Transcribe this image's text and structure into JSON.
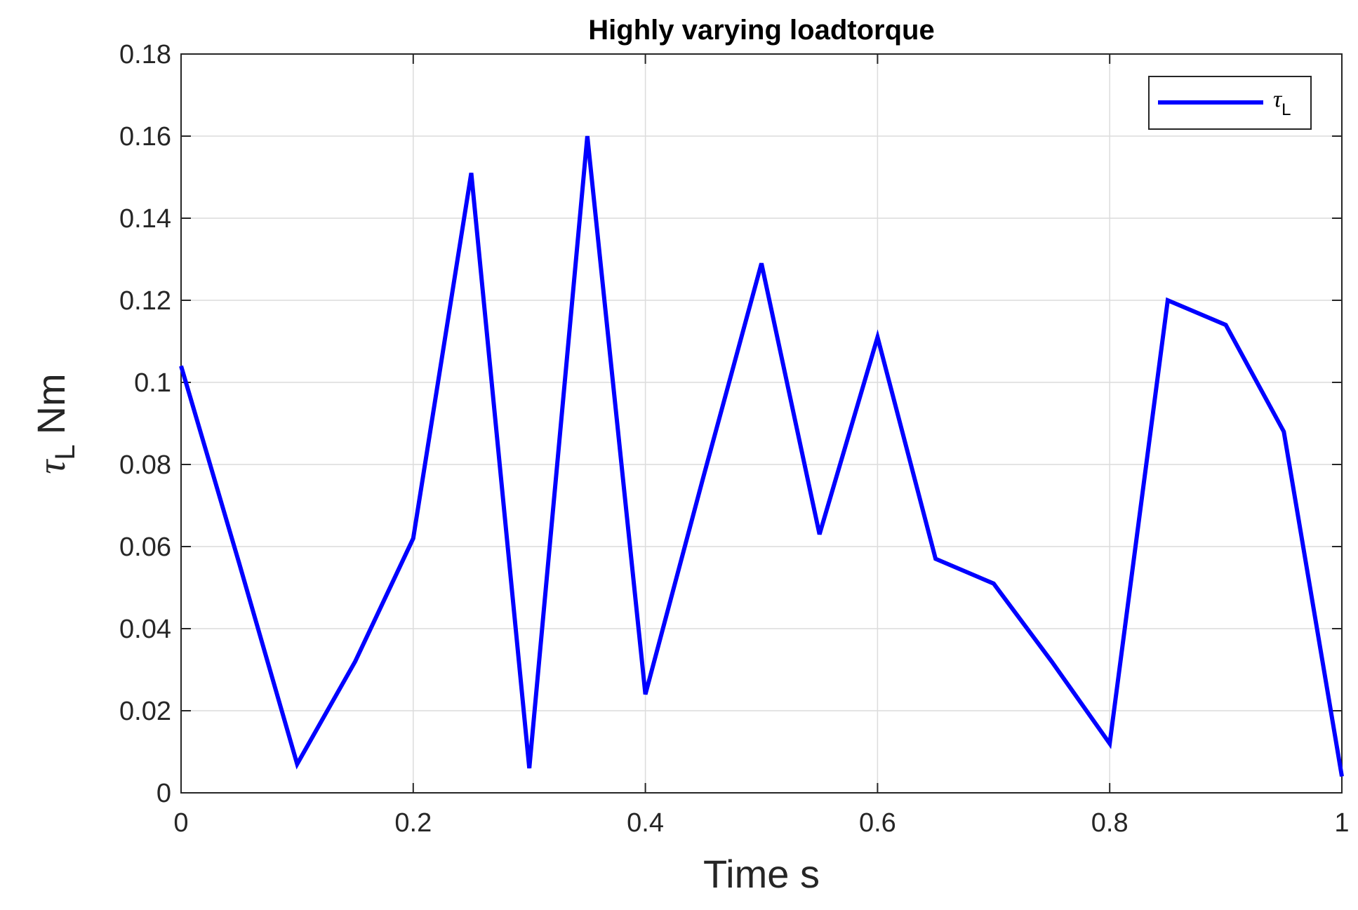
{
  "chart_data": {
    "type": "line",
    "title": "Highly varying loadtorque",
    "xlabel": "Time s",
    "ylabel": {
      "symbol": "τ",
      "subscript": "L",
      "unit": "Nm"
    },
    "xlim": [
      0,
      1
    ],
    "ylim": [
      0,
      0.18
    ],
    "xticks": [
      "0",
      "0.2",
      "0.4",
      "0.6",
      "0.8",
      "1"
    ],
    "xtick_values": [
      0,
      0.2,
      0.4,
      0.6,
      0.8,
      1
    ],
    "yticks": [
      "0",
      "0.02",
      "0.04",
      "0.06",
      "0.08",
      "0.1",
      "0.12",
      "0.14",
      "0.16",
      "0.18"
    ],
    "ytick_values": [
      0,
      0.02,
      0.04,
      0.06,
      0.08,
      0.1,
      0.12,
      0.14,
      0.16,
      0.18
    ],
    "grid": true,
    "legend": {
      "position": "top-right",
      "symbol": "τ",
      "subscript": "L"
    },
    "series": [
      {
        "color": "#0000ff",
        "x": [
          0,
          0.05,
          0.1,
          0.15,
          0.2,
          0.25,
          0.3,
          0.35,
          0.4,
          0.45,
          0.5,
          0.55,
          0.6,
          0.65,
          0.7,
          0.75,
          0.8,
          0.85,
          0.9,
          0.95,
          1.0
        ],
        "y": [
          0.104,
          0.056,
          0.007,
          0.032,
          0.062,
          0.151,
          0.006,
          0.16,
          0.024,
          0.077,
          0.129,
          0.063,
          0.111,
          0.057,
          0.051,
          0.032,
          0.012,
          0.12,
          0.114,
          0.088,
          0.004
        ]
      }
    ]
  }
}
